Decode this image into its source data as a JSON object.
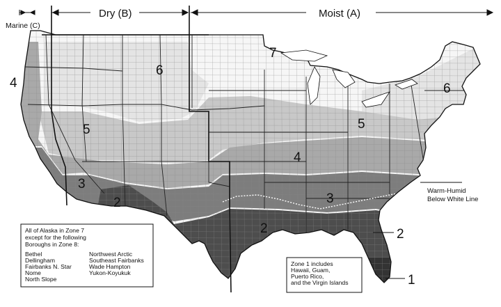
{
  "headers": {
    "marine": "Marine (C)",
    "dry": "Dry (B)",
    "moist": "Moist (A)"
  },
  "zone_labels": {
    "z7": "7",
    "z6_west": "6",
    "z6_east": "6",
    "z5_west": "5",
    "z5_east": "5",
    "z4_west": "4",
    "z4_east": "4",
    "z3_west": "3",
    "z3_east": "3",
    "z2_west": "2",
    "z2_gulf": "2",
    "z2_florida": "2",
    "z1": "1"
  },
  "callouts": {
    "warm_humid_line1": "Warm-Humid",
    "warm_humid_line2": "Below White Line"
  },
  "alaska_box": {
    "lines": [
      "All of Alaska in Zone 7",
      "except for the following",
      "Boroughs in Zone 8:"
    ],
    "col1": [
      "Bethel",
      "Dellingham",
      "Fairbanks N. Star",
      "Nome",
      "North Slope"
    ],
    "col2": [
      "Northwest Arctic",
      "Southeast Fairbanks",
      "Wade Hampton",
      "Yukon-Koyukuk"
    ]
  },
  "zone1_box": {
    "lines": [
      "Zone 1 includes",
      "Hawaii, Guam,",
      "Puerto Rico,",
      "and the Virgin Islands"
    ]
  },
  "colors": {
    "zone7": "#f6f6f6",
    "zone6": "#e4e4e4",
    "zone5": "#c8c8c8",
    "zone4": "#a9a9a9",
    "zone3": "#7d7d7d",
    "zone2": "#4d4d4d",
    "zone1": "#333333",
    "border": "#111111",
    "warm_humid_line": "#ffffff"
  }
}
